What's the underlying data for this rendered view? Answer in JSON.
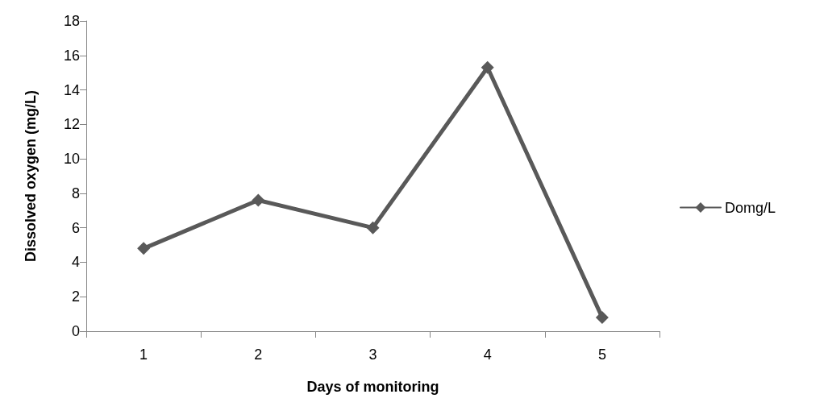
{
  "chart_data": {
    "type": "line",
    "xlabel": "Days of monitoring",
    "ylabel": "Dissolved oxygen (mg/L)",
    "categories": [
      "1",
      "2",
      "3",
      "4",
      "5"
    ],
    "series": [
      {
        "name": "Domg/L",
        "color": "#595959",
        "values": [
          4.8,
          7.6,
          6.0,
          15.3,
          0.8
        ]
      }
    ],
    "ylim": [
      0,
      18
    ],
    "yticks": [
      0,
      2,
      4,
      6,
      8,
      10,
      12,
      14,
      16,
      18
    ],
    "grid": false,
    "legend": "right",
    "marker": "diamond",
    "line_style": "solid"
  }
}
